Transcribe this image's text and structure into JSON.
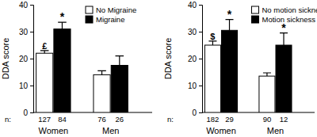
{
  "chart_data": [
    {
      "type": "bar",
      "y_label": "DDA score",
      "categories": [
        "Women",
        "Men"
      ],
      "sample_label": "n:",
      "ylim": [
        0,
        40
      ],
      "yticks": [
        0,
        10,
        20,
        30,
        40
      ],
      "legend": "top-right",
      "series": [
        {
          "name": "No Migraine",
          "color": "#ffffff",
          "values": [
            22,
            14
          ],
          "errors": [
            1,
            1.5
          ],
          "annotations": [
            "£",
            null
          ],
          "sample_sizes": [
            127,
            76
          ]
        },
        {
          "name": "Migraine",
          "color": "#000000",
          "values": [
            31,
            17.5
          ],
          "errors": [
            2.5,
            3.5
          ],
          "annotations": [
            "*",
            null
          ],
          "sample_sizes": [
            84,
            26
          ]
        }
      ]
    },
    {
      "type": "bar",
      "y_label": "DDA score",
      "categories": [
        "Women",
        "Men"
      ],
      "sample_label": "n:",
      "ylim": [
        0,
        40
      ],
      "yticks": [
        0,
        10,
        20,
        30,
        40
      ],
      "legend": "top-right",
      "series": [
        {
          "name": "No motion sickness",
          "color": "#ffffff",
          "values": [
            25,
            13.5
          ],
          "errors": [
            1.5,
            1.2
          ],
          "annotations": [
            "$",
            null
          ],
          "sample_sizes": [
            182,
            90
          ]
        },
        {
          "name": "Motion sickness",
          "color": "#000000",
          "values": [
            30.5,
            25
          ],
          "errors": [
            4,
            4.5
          ],
          "annotations": [
            "*",
            "*"
          ],
          "sample_sizes": [
            29,
            12
          ]
        }
      ]
    }
  ]
}
